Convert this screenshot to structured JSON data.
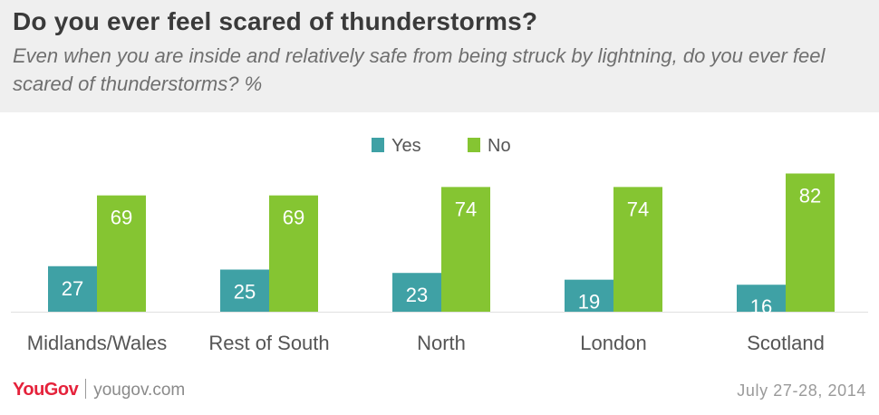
{
  "header": {
    "title": "Do you ever feel scared of thunderstorms?",
    "subtitle": "Even when you are inside and relatively safe from being struck by lightning, do you ever feel scared of thunderstorms? %"
  },
  "footer": {
    "brand": "YouGov",
    "url": "yougov.com",
    "date": "July 27-28, 2014"
  },
  "chart_data": {
    "type": "bar",
    "categories": [
      "Midlands/Wales",
      "Rest of South",
      "North",
      "London",
      "Scotland"
    ],
    "series": [
      {
        "name": "Yes",
        "values": [
          27,
          25,
          23,
          19,
          16
        ],
        "color": "#3fa1a5"
      },
      {
        "name": "No",
        "values": [
          69,
          69,
          74,
          74,
          82
        ],
        "color": "#85c532"
      }
    ],
    "legend_position": "top-center",
    "data_labels": true,
    "grid": false
  }
}
